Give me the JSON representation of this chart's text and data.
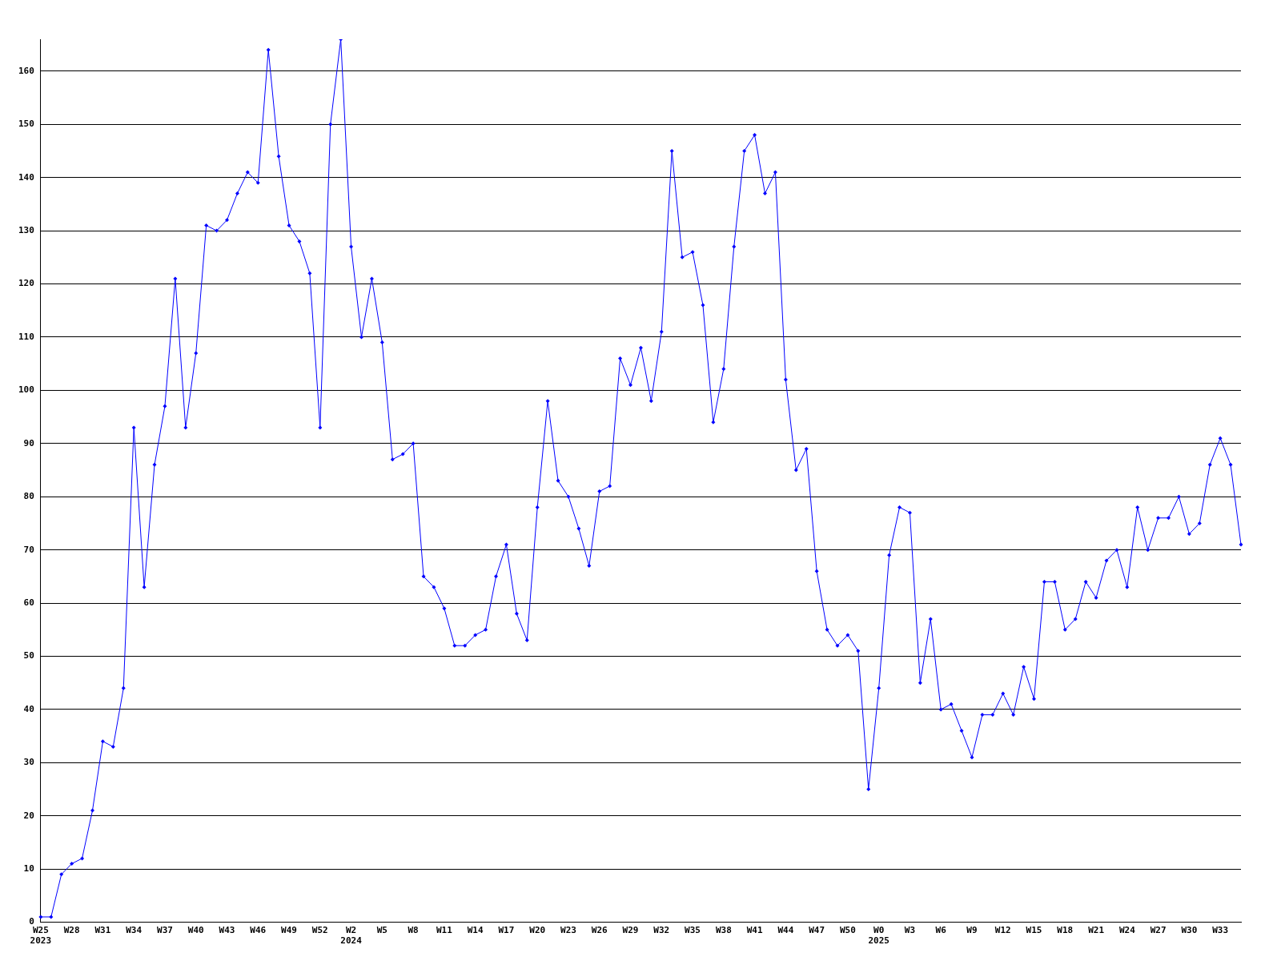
{
  "chart_data": {
    "type": "line",
    "categories": [
      "W25\n2023",
      null,
      null,
      "W28",
      null,
      null,
      "W31",
      null,
      null,
      "W34",
      null,
      null,
      "W37",
      null,
      null,
      "W40",
      null,
      null,
      "W43",
      null,
      null,
      "W46",
      null,
      null,
      "W49",
      null,
      null,
      "W52",
      null,
      null,
      "W2\n2024",
      null,
      null,
      "W5",
      null,
      null,
      "W8",
      null,
      null,
      "W11",
      null,
      null,
      "W14",
      null,
      null,
      "W17",
      null,
      null,
      "W20",
      null,
      null,
      "W23",
      null,
      null,
      "W26",
      null,
      null,
      "W29",
      null,
      null,
      "W32",
      null,
      null,
      "W35",
      null,
      null,
      "W38",
      null,
      null,
      "W41",
      null,
      null,
      "W44",
      null,
      null,
      "W47",
      null,
      null,
      "W50",
      null,
      null,
      "W0\n2025",
      null,
      null,
      "W3",
      null,
      null,
      "W6",
      null,
      null,
      "W9",
      null,
      null,
      "W12",
      null,
      null,
      "W15",
      null,
      null,
      "W18",
      null,
      null,
      "W21",
      null,
      null,
      "W24",
      null,
      null,
      "W27",
      null,
      null,
      "W30",
      null,
      null,
      "W33",
      null,
      null
    ],
    "series": [
      {
        "color": "#0000ff",
        "values": [
          1,
          1,
          9,
          11,
          12,
          21,
          34,
          33,
          44,
          93,
          63,
          86,
          97,
          121,
          93,
          107,
          131,
          130,
          132,
          137,
          141,
          139,
          164,
          144,
          131,
          128,
          122,
          93,
          150,
          166,
          127,
          110,
          121,
          109,
          87,
          88,
          90,
          65,
          63,
          59,
          52,
          52,
          54,
          55,
          65,
          71,
          58,
          53,
          78,
          98,
          83,
          80,
          74,
          67,
          81,
          82,
          106,
          101,
          108,
          98,
          111,
          145,
          125,
          126,
          116,
          94,
          104,
          127,
          145,
          148,
          137,
          141,
          102,
          85,
          89,
          66,
          55,
          52,
          54,
          51,
          25,
          44,
          69,
          78,
          77,
          45,
          57,
          40,
          41,
          36,
          31,
          39,
          39,
          43,
          39,
          48,
          42,
          64,
          64,
          55,
          57,
          64,
          61,
          68,
          70,
          63,
          78,
          70,
          76,
          76,
          80,
          73,
          75,
          86,
          91,
          86,
          71
        ]
      }
    ],
    "ylim": [
      0,
      166
    ],
    "yticks": [
      0,
      10,
      20,
      30,
      40,
      50,
      60,
      70,
      80,
      90,
      100,
      110,
      120,
      130,
      140,
      150,
      160
    ],
    "grid": "y",
    "legend": false,
    "marker": "diamond"
  }
}
